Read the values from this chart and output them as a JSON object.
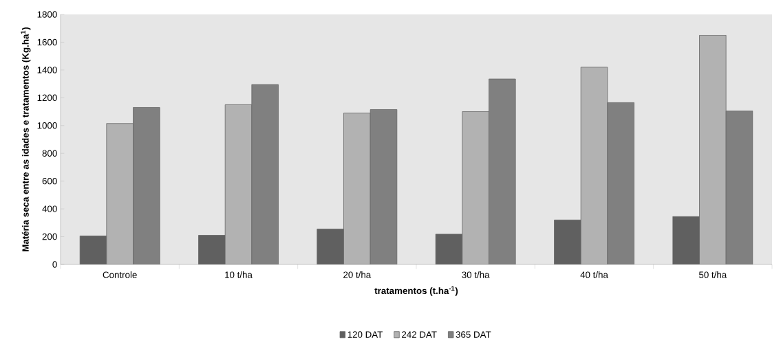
{
  "chart_data": {
    "type": "bar",
    "xlabel": "tratamentos (t.ha$^{-1}$)",
    "ylabel": "Matéria seca entre as idades e tratamentos  (Kg.ha$^{1}$)",
    "categories": [
      "Controle",
      "10 t/ha",
      "20 t/ha",
      "30 t/ha",
      "40 t/ha",
      "50 t/ha"
    ],
    "series": [
      {
        "name": "120 DAT",
        "color": "#606060",
        "values": [
          205,
          210,
          255,
          218,
          320,
          345
        ]
      },
      {
        "name": "242 DAT",
        "color": "#b2b2b2",
        "values": [
          1015,
          1150,
          1090,
          1100,
          1420,
          1650
        ]
      },
      {
        "name": "365 DAT",
        "color": "#808080",
        "values": [
          1130,
          1295,
          1115,
          1335,
          1165,
          1105
        ]
      }
    ],
    "ylim": [
      0,
      1800
    ],
    "yticks": [
      0,
      200,
      400,
      600,
      800,
      1000,
      1200,
      1400,
      1600,
      1800
    ],
    "grid": false,
    "legend": "bottom"
  }
}
